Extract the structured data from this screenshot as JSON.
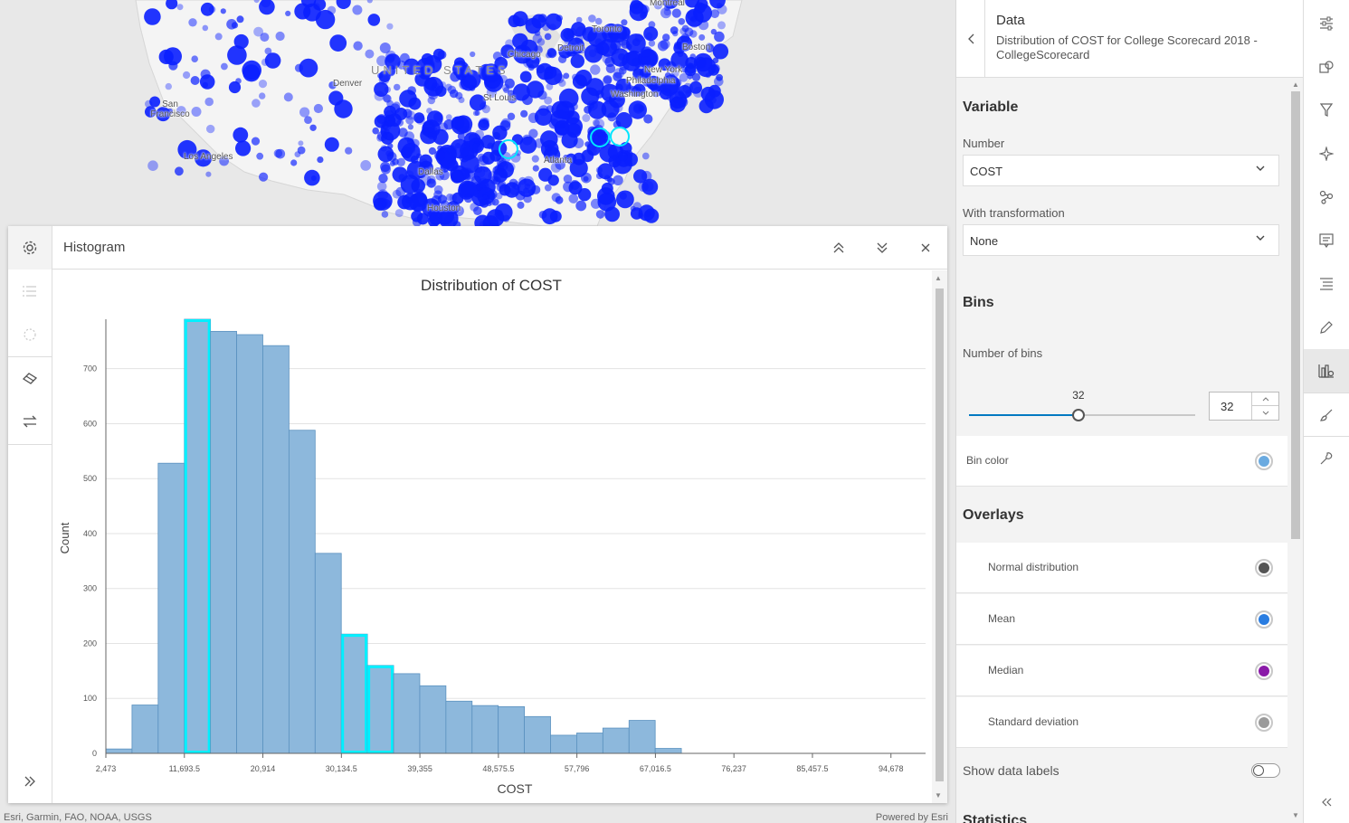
{
  "map": {
    "country_label": "UNITED STATES",
    "cities": [
      "Montreal",
      "Toronto",
      "Detroit",
      "Chicago",
      "Boston",
      "New York",
      "Philadelphia",
      "Washington",
      "Denver",
      "San Francisco",
      "St Louis",
      "Los Angeles",
      "Atlanta",
      "Dallas",
      "Houston"
    ],
    "attribution": "Esri, Garmin, FAO, NOAA, USGS",
    "powered_by": "Powered by Esri",
    "point_color": "#0a1fff",
    "highlight_color": "#00e5ff"
  },
  "histogram_panel": {
    "title": "Histogram",
    "rail_icons": [
      "gear-icon",
      "list-icon",
      "pie-icon",
      "eraser-icon",
      "swap-icon",
      "expand-icon"
    ],
    "header_icons": [
      "chevron-double-up-icon",
      "chevron-double-down-icon",
      "close-icon"
    ]
  },
  "chart_data": {
    "type": "bar",
    "title": "Distribution of COST",
    "xlabel": "COST",
    "ylabel": "Count",
    "xlim": [
      2473,
      98744.5
    ],
    "ylim": [
      0,
      790
    ],
    "bin_width": 3072.25,
    "x_ticks": [
      2473,
      11693.5,
      20914,
      30134.5,
      39355,
      48575.5,
      57796,
      67016.5,
      76237,
      85457.5,
      94678
    ],
    "x_tick_labels": [
      "2,473",
      "11,693.5",
      "20,914",
      "30,134.5",
      "39,355",
      "48,575.5",
      "57,796",
      "67,016.5",
      "76,237",
      "85,457.5",
      "94,678"
    ],
    "y_ticks": [
      0,
      100,
      200,
      300,
      400,
      500,
      600,
      700
    ],
    "values": [
      8,
      88,
      528,
      790,
      768,
      762,
      742,
      588,
      364,
      217,
      160,
      145,
      123,
      95,
      87,
      85,
      67,
      33,
      37,
      46,
      60,
      9,
      0,
      0,
      0,
      0,
      0,
      0,
      0,
      0,
      0,
      0
    ],
    "selected_bins": [
      3,
      9,
      10
    ],
    "bar_color": "#8db8dc",
    "bar_stroke": "#5a91bf",
    "selection_color": "#00f0ff",
    "grid": true,
    "legend": "none"
  },
  "side_panel": {
    "title": "Data",
    "subtitle": "Distribution of COST for College Scorecard 2018 - CollegeScorecard",
    "variable_section": "Variable",
    "number_label": "Number",
    "number_value": "COST",
    "transformation_label": "With transformation",
    "transformation_value": "None",
    "bins_section": "Bins",
    "num_bins_label": "Number of bins",
    "num_bins_value": "32",
    "num_bins_slider_fraction": 0.485,
    "bin_color_label": "Bin color",
    "bin_color": "#6aaae0",
    "overlays_section": "Overlays",
    "overlays": [
      {
        "label": "Normal distribution",
        "color": "#555555"
      },
      {
        "label": "Mean",
        "color": "#2a7de1"
      },
      {
        "label": "Median",
        "color": "#8a1aa8"
      },
      {
        "label": "Standard deviation",
        "color": "#9a9a9a"
      }
    ],
    "show_labels_label": "Show data labels",
    "statistics_section": "Statistics"
  },
  "toolbar": {
    "tools": [
      "sliders-icon",
      "shapes-icon",
      "filter-icon",
      "sparkle-icon",
      "network-icon",
      "popup-icon",
      "text-align-icon",
      "pen-icon",
      "chart-settings-icon",
      "brush-icon",
      "wrench-icon"
    ],
    "active_tool": "chart-settings-icon",
    "collapse_icon": "chevron-double-left-icon"
  }
}
